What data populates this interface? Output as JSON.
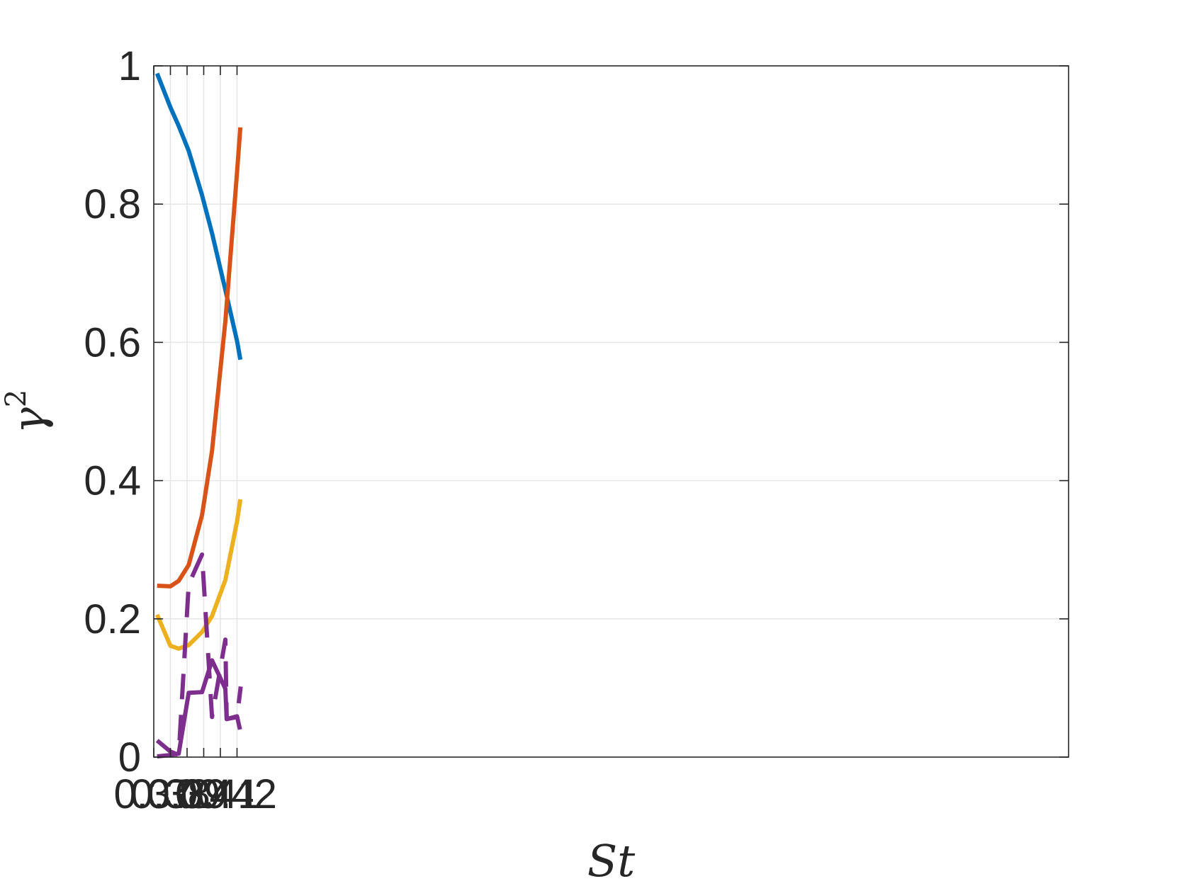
{
  "chart_data": {
    "type": "line",
    "title": "",
    "xlabel": "St",
    "ylabel": "γ",
    "ylabel_superscript": "2",
    "xlim": [
      0.37,
      0.425
    ],
    "ylim": [
      0,
      1
    ],
    "grid": true,
    "x_ticks": [
      0.37,
      0.38,
      0.39,
      0.4,
      0.41,
      0.42
    ],
    "x_tick_labels": [
      "0.37",
      "0.38",
      "0.39",
      "0.4",
      "0.41",
      "0.42"
    ],
    "y_ticks": [
      0,
      0.2,
      0.4,
      0.6,
      0.8,
      1
    ],
    "y_tick_labels": [
      "0",
      "0.2",
      "0.4",
      "0.6",
      "0.8",
      "1"
    ],
    "series": [
      {
        "color": "#0072BD",
        "style": "solid",
        "x": [
          0.372,
          0.38,
          0.385,
          0.391,
          0.399,
          0.405,
          0.413,
          0.42,
          0.422
        ],
        "y": [
          0.989,
          0.94,
          0.913,
          0.877,
          0.813,
          0.758,
          0.676,
          0.602,
          0.575
        ]
      },
      {
        "color": "#D95319",
        "style": "solid",
        "x": [
          0.372,
          0.38,
          0.385,
          0.391,
          0.399,
          0.405,
          0.413,
          0.42,
          0.422
        ],
        "y": [
          0.248,
          0.247,
          0.255,
          0.278,
          0.35,
          0.443,
          0.63,
          0.846,
          0.911
        ]
      },
      {
        "color": "#EDB120",
        "style": "solid",
        "x": [
          0.372,
          0.38,
          0.385,
          0.391,
          0.399,
          0.405,
          0.413,
          0.42,
          0.422
        ],
        "y": [
          0.206,
          0.161,
          0.157,
          0.162,
          0.181,
          0.204,
          0.256,
          0.341,
          0.373
        ]
      },
      {
        "color": "#7E2F8E",
        "style": "solid",
        "x": [
          0.372,
          0.38,
          0.385,
          0.391,
          0.399,
          0.405,
          0.413,
          0.4138,
          0.42,
          0.4218
        ],
        "y": [
          0.001,
          0.003,
          0.005,
          0.093,
          0.094,
          0.14,
          0.099,
          0.055,
          0.059,
          0.04
        ]
      },
      {
        "color": "#7E2F8E",
        "style": "dashed",
        "x": [
          0.372,
          0.38,
          0.385,
          0.391,
          0.399,
          0.405,
          0.413,
          0.4138,
          0.42,
          0.4222
        ],
        "y": [
          0.024,
          0.008,
          0.003,
          0.25,
          0.293,
          0.058,
          0.17,
          0.055,
          0.058,
          0.102
        ]
      }
    ]
  }
}
